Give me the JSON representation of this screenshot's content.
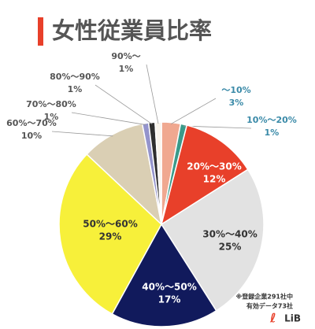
{
  "chart_data": {
    "type": "pie",
    "title": "女性従業員比率",
    "categories": [
      "～10%",
      "10%～20%",
      "20%～30%",
      "30%～40%",
      "40%～50%",
      "50%～60%",
      "60%～70%",
      "70%～80%",
      "80%～90%",
      "90%～"
    ],
    "values": [
      3,
      1,
      12,
      25,
      17,
      29,
      10,
      1,
      1,
      1
    ],
    "value_labels": [
      "3%",
      "1%",
      "12%",
      "25%",
      "17%",
      "29%",
      "10%",
      "1%",
      "1%",
      "1%"
    ],
    "colors": [
      "#f0a890",
      "#3a9a8a",
      "#e8402a",
      "#e2e2e2",
      "#111a5c",
      "#f7f03a",
      "#dacfb4",
      "#9494cc",
      "#2e2e2e",
      "#f8f4ec"
    ],
    "notes": [
      "※登録企業291社中",
      "有効データ73社"
    ],
    "logo": "LiB"
  }
}
